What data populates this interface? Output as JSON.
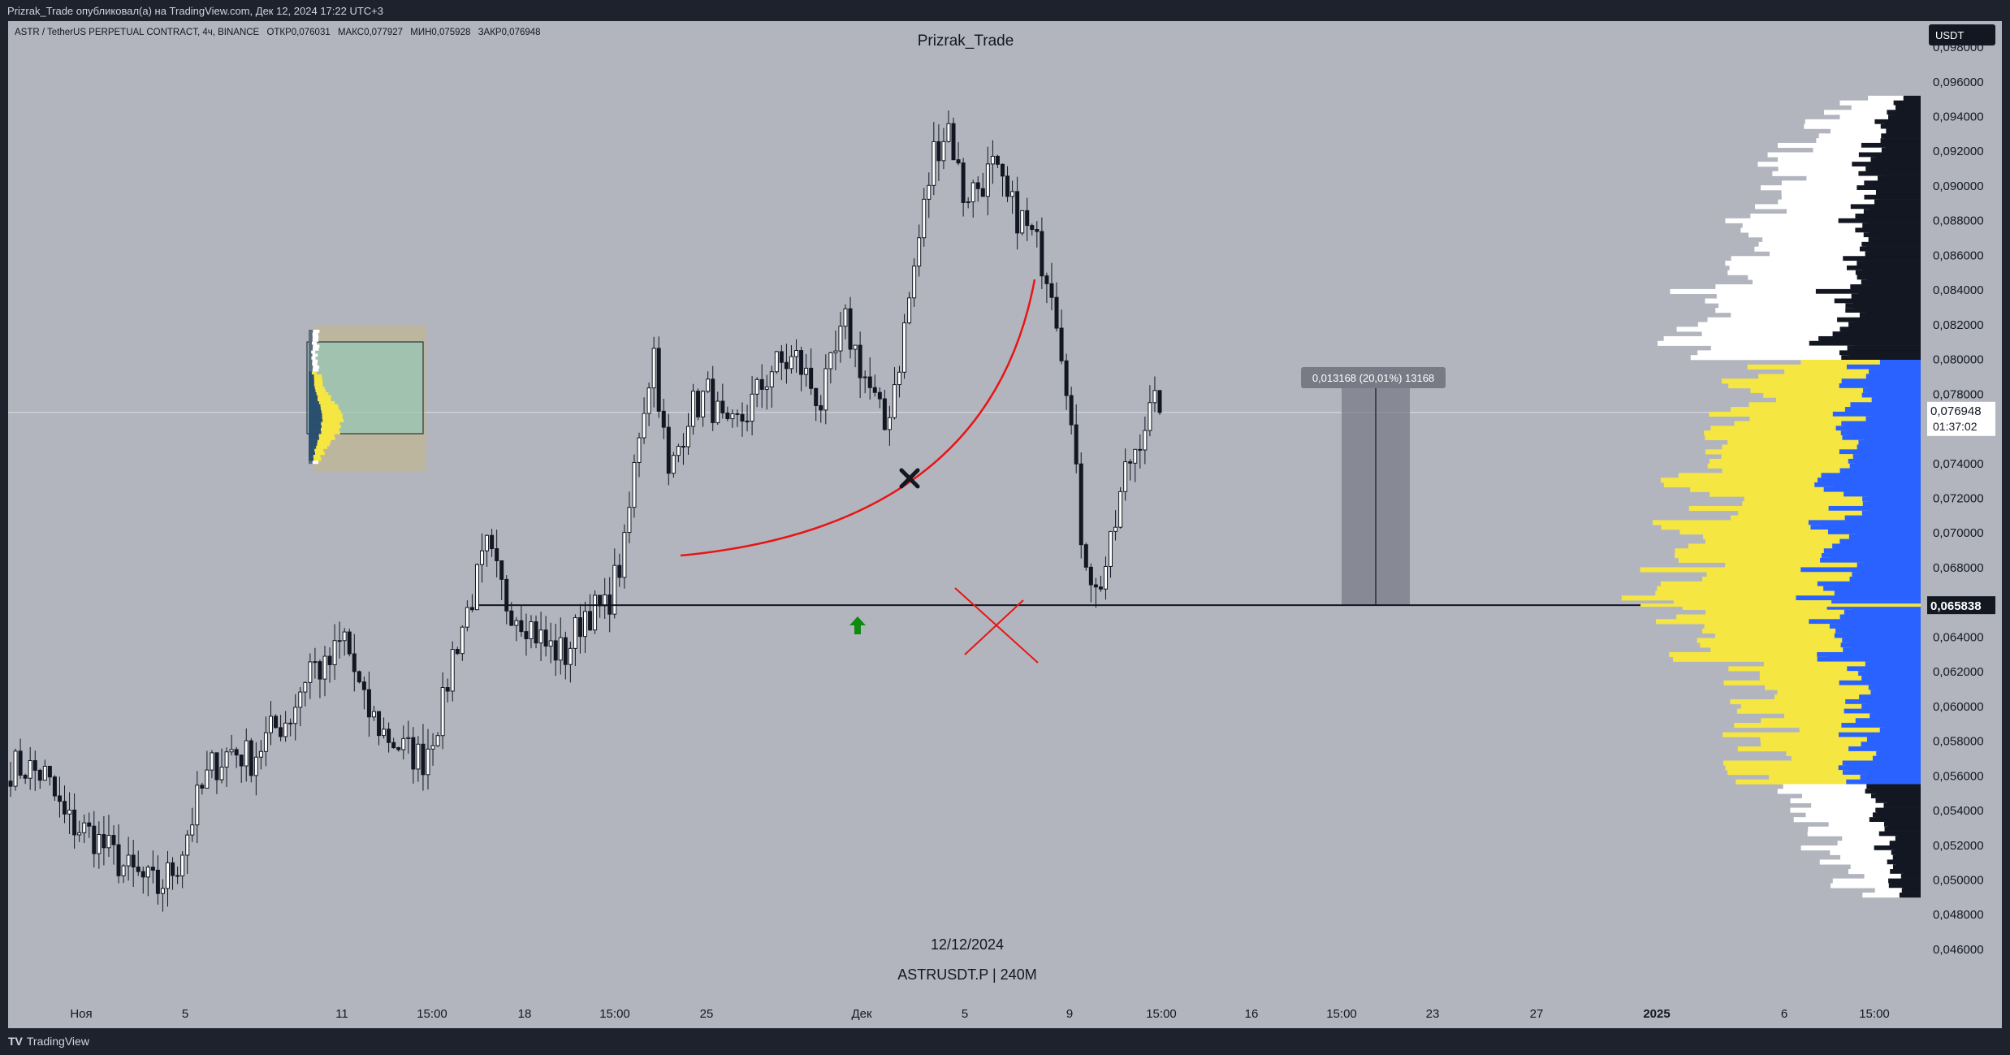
{
  "header": {
    "published": "Prizrak_Trade опубликовал(а) на TradingView.com, Дек 12, 2024 17:22 UTC+3"
  },
  "legend": {
    "symbol": "ASTR / TetherUS PERPETUAL CONTRACT, 4ч, BINANCE",
    "open_label": "ОТКР",
    "open": "0,076031",
    "high_label": "МАКС",
    "high": "0,077927",
    "low_label": "МИН",
    "low": "0,075928",
    "close_label": "ЗАКР",
    "close": "0,076948"
  },
  "author": "Prizrak_Trade",
  "currency_button": "USDT",
  "price_labels": {
    "last": "0,076948",
    "countdown": "01:37:02",
    "line_level": "0,065838"
  },
  "measure": {
    "label": "0,013168 (20,01%) 13168",
    "from": 0.065838,
    "to": 0.079006
  },
  "footer": {
    "date": "12/12/2024",
    "symbol": "ASTRUSDT.P | 240M"
  },
  "brand": {
    "logo": "TV",
    "name": "TradingView"
  },
  "colors": {
    "background": "#b2b5be",
    "frame": "#1e222d",
    "candles": "#131722",
    "curve": "#e81515",
    "profile_value_area": "#2962ff",
    "profile_value_area_alt": "#f5e642",
    "profile_outside": "#131722",
    "profile_outside_alt": "#ffffff",
    "arrow": "#0f8a0f",
    "measure_box": "#787b86"
  },
  "chart_data": {
    "type": "candlestick",
    "title": "ASTR / TetherUS PERPETUAL CONTRACT, 4ч, BINANCE",
    "x_ticks": [
      "Ноя",
      "5",
      "11",
      "15:00",
      "18",
      "15:00",
      "25",
      "Дек",
      "5",
      "9",
      "15:00",
      "16",
      "15:00",
      "23",
      "27",
      "2025",
      "6",
      "15:00"
    ],
    "y_ticks": [
      "0,046000",
      "0,048000",
      "0,050000",
      "0,052000",
      "0,054000",
      "0,056000",
      "0,058000",
      "0,060000",
      "0,062000",
      "0,064000",
      "0,066000",
      "0,068000",
      "0,070000",
      "0,072000",
      "0,074000",
      "0,076000",
      "0,078000",
      "0,080000",
      "0,082000",
      "0,084000",
      "0,086000",
      "0,088000",
      "0,090000",
      "0,092000",
      "0,094000",
      "0,096000",
      "0,098000"
    ],
    "ylim": [
      0.0445,
      0.0995
    ],
    "horizontal_line": 0.065838,
    "last_price": 0.076948,
    "series": [
      {
        "name": "ASTRUSDT.P",
        "anchors": [
          [
            0,
            0.0565
          ],
          [
            3,
            0.0565
          ],
          [
            7,
            0.056
          ],
          [
            11,
            0.0535
          ],
          [
            17,
            0.0525
          ],
          [
            24,
            0.0505
          ],
          [
            30,
            0.0495
          ],
          [
            34,
            0.051
          ],
          [
            38,
            0.0545
          ],
          [
            41,
            0.0565
          ],
          [
            45,
            0.0575
          ],
          [
            49,
            0.057
          ],
          [
            53,
            0.0585
          ],
          [
            57,
            0.0595
          ],
          [
            61,
            0.0625
          ],
          [
            64,
            0.062
          ],
          [
            68,
            0.064
          ],
          [
            72,
            0.06
          ],
          [
            76,
            0.0585
          ],
          [
            80,
            0.0575
          ],
          [
            84,
            0.057
          ],
          [
            88,
            0.06
          ],
          [
            90,
            0.063
          ],
          [
            93,
            0.0655
          ],
          [
            97,
            0.069
          ],
          [
            101,
            0.066
          ],
          [
            105,
            0.065
          ],
          [
            109,
            0.0635
          ],
          [
            113,
            0.063
          ],
          [
            117,
            0.0655
          ],
          [
            121,
            0.0655
          ],
          [
            125,
            0.069
          ],
          [
            128,
            0.076
          ],
          [
            131,
            0.0805
          ],
          [
            134,
            0.073
          ],
          [
            138,
            0.077
          ],
          [
            142,
            0.078
          ],
          [
            146,
            0.0755
          ],
          [
            150,
            0.077
          ],
          [
            155,
            0.0795
          ],
          [
            160,
            0.08
          ],
          [
            165,
            0.0775
          ],
          [
            170,
            0.082
          ],
          [
            174,
            0.079
          ],
          [
            178,
            0.076
          ],
          [
            181,
            0.08
          ],
          [
            185,
            0.087
          ],
          [
            188,
            0.092
          ],
          [
            191,
            0.0935
          ],
          [
            194,
            0.0895
          ],
          [
            197,
            0.09
          ],
          [
            200,
            0.091
          ],
          [
            203,
            0.089
          ],
          [
            206,
            0.088
          ],
          [
            209,
            0.0865
          ],
          [
            212,
            0.0845
          ],
          [
            215,
            0.079
          ],
          [
            218,
            0.07
          ],
          [
            221,
            0.0665
          ],
          [
            224,
            0.069
          ],
          [
            227,
            0.0735
          ],
          [
            231,
            0.0765
          ],
          [
            234,
            0.0775
          ]
        ]
      }
    ]
  }
}
